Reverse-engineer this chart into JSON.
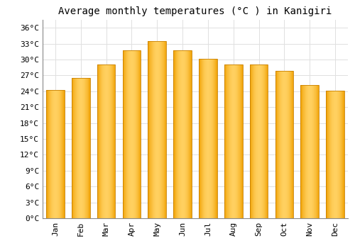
{
  "title": "Average monthly temperatures (°C ) in Kanigiri",
  "months": [
    "Jan",
    "Feb",
    "Mar",
    "Apr",
    "May",
    "Jun",
    "Jul",
    "Aug",
    "Sep",
    "Oct",
    "Nov",
    "Dec"
  ],
  "temperatures": [
    24.2,
    26.5,
    29.0,
    31.8,
    33.5,
    31.8,
    30.1,
    29.1,
    29.1,
    27.9,
    25.2,
    24.1
  ],
  "bar_color_center": "#FFD060",
  "bar_color_edge": "#F0A000",
  "background_color": "#FFFFFF",
  "grid_color": "#E0E0E0",
  "yticks": [
    0,
    3,
    6,
    9,
    12,
    15,
    18,
    21,
    24,
    27,
    30,
    33,
    36
  ],
  "ylim": [
    0,
    37.5
  ],
  "title_fontsize": 10,
  "tick_fontsize": 8,
  "font_family": "monospace"
}
